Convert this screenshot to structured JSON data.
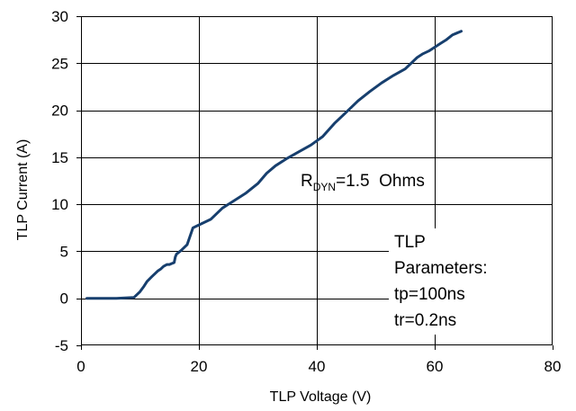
{
  "chart_data": {
    "type": "line",
    "title": "",
    "xlabel": "TLP Voltage (V)",
    "ylabel": "TLP Current (A)",
    "xlim": [
      0,
      80
    ],
    "ylim": [
      -5,
      30
    ],
    "xticks": [
      0,
      20,
      40,
      60,
      80
    ],
    "yticks": [
      -5,
      0,
      5,
      10,
      15,
      20,
      25,
      30
    ],
    "grid": true,
    "series": [
      {
        "color": "#173f6e",
        "x": [
          1,
          6,
          9,
          10,
          10.7,
          11.2,
          12,
          13,
          13.5,
          14,
          14.6,
          15,
          15.4,
          15.8,
          16,
          16.2,
          17,
          18,
          19,
          20,
          22,
          24,
          26,
          28,
          30,
          31.5,
          33,
          35,
          37,
          39,
          41,
          43,
          45,
          47,
          49,
          51,
          53,
          55,
          57,
          58,
          59,
          60,
          61,
          62,
          63,
          64.5
        ],
        "y": [
          0,
          0,
          0.1,
          0.7,
          1.3,
          1.8,
          2.3,
          2.9,
          3.1,
          3.4,
          3.6,
          3.6,
          3.7,
          3.8,
          4.4,
          4.7,
          5.1,
          5.7,
          7.5,
          7.8,
          8.4,
          9.6,
          10.4,
          11.2,
          12.2,
          13.3,
          14.1,
          14.9,
          15.6,
          16.3,
          17.2,
          18.6,
          19.8,
          21.0,
          22.0,
          22.9,
          23.7,
          24.4,
          25.6,
          26.0,
          26.3,
          26.7,
          27.1,
          27.5,
          28.0,
          28.4
        ]
      }
    ],
    "annotations": {
      "rdyn": {
        "main": "R",
        "sub": "DYN",
        "rest": "=1.5  Ohms"
      },
      "params": [
        "TLP",
        "Parameters:",
        "tp=100ns",
        "tr=0.2ns"
      ]
    }
  }
}
